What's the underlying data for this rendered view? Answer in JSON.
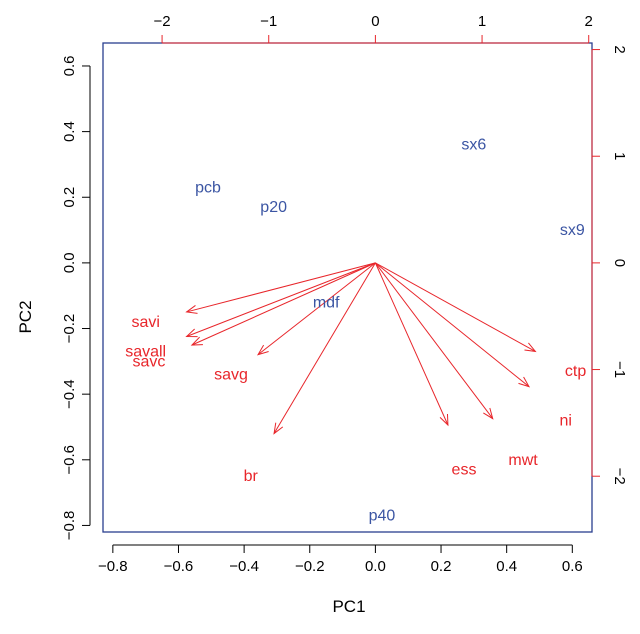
{
  "chart_data": {
    "type": "scatter",
    "subtype": "pca-biplot",
    "title": "",
    "xlabel": "PC1",
    "ylabel": "PC2",
    "xlim": [
      -0.83,
      0.66
    ],
    "ylim": [
      -0.82,
      0.67
    ],
    "x_ticks": [
      -0.8,
      -0.6,
      -0.4,
      -0.2,
      0.0,
      0.2,
      0.4,
      0.6
    ],
    "x_tick_labels": [
      "−0.8",
      "−0.6",
      "−0.4",
      "−0.2",
      "0.0",
      "0.2",
      "0.4",
      "0.6"
    ],
    "y_ticks": [
      -0.8,
      -0.6,
      -0.4,
      -0.2,
      0.0,
      0.2,
      0.4,
      0.6
    ],
    "y_tick_labels": [
      "−0.8",
      "−0.6",
      "−0.4",
      "−0.2",
      "0.0",
      "0.2",
      "0.4",
      "0.6"
    ],
    "top_ticks": [
      -2,
      -1,
      0,
      1,
      2
    ],
    "top_tick_labels": [
      "−2",
      "−1",
      "0",
      "1",
      "2"
    ],
    "right_ticks": [
      -2,
      -1,
      0,
      1,
      2
    ],
    "right_tick_labels": [
      "−2",
      "−1",
      "0",
      "1",
      "2"
    ],
    "loading_scale": 0.325,
    "grid": false,
    "observation_color": "#3b55a3",
    "variable_color": "#e8262b",
    "observations": [
      {
        "label": "sx6",
        "x": 0.3,
        "y": 0.36
      },
      {
        "label": "pcb",
        "x": -0.51,
        "y": 0.23
      },
      {
        "label": "p20",
        "x": -0.31,
        "y": 0.17
      },
      {
        "label": "sx9",
        "x": 0.6,
        "y": 0.1
      },
      {
        "label": "mdf",
        "x": -0.15,
        "y": -0.12
      },
      {
        "label": "p40",
        "x": 0.02,
        "y": -0.77
      }
    ],
    "variables": [
      {
        "label": "savi",
        "x": -1.77,
        "y": -0.46,
        "label_x": -0.7,
        "label_y": -0.18
      },
      {
        "label": "savall",
        "x": -1.77,
        "y": -0.69,
        "label_x": -0.7,
        "label_y": -0.27
      },
      {
        "label": "savc",
        "x": -1.72,
        "y": -0.77,
        "label_x": -0.69,
        "label_y": -0.3
      },
      {
        "label": "savg",
        "x": -1.1,
        "y": -0.86,
        "label_x": -0.44,
        "label_y": -0.34
      },
      {
        "label": "br",
        "x": -0.95,
        "y": -1.6,
        "label_x": -0.38,
        "label_y": -0.65
      },
      {
        "label": "ess",
        "x": 0.68,
        "y": -1.52,
        "label_x": 0.27,
        "label_y": -0.63
      },
      {
        "label": "mwt",
        "x": 1.1,
        "y": -1.46,
        "label_x": 0.45,
        "label_y": -0.6
      },
      {
        "label": "ctp",
        "x": 1.5,
        "y": -0.83,
        "label_x": 0.61,
        "label_y": -0.33
      },
      {
        "label": "ni",
        "x": 1.44,
        "y": -1.16,
        "label_x": 0.58,
        "label_y": -0.48
      }
    ]
  }
}
